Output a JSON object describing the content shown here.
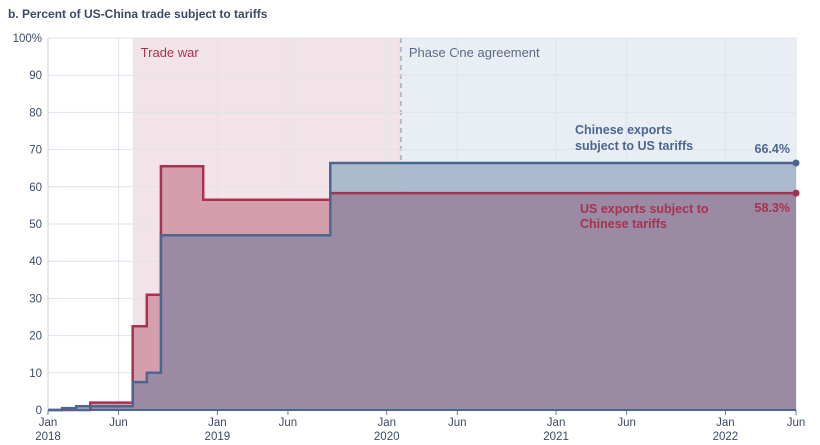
{
  "chart_data": {
    "type": "area",
    "title": "b. Percent of US-China trade subject to tariffs",
    "xlabel": "",
    "ylabel": "",
    "ylim": [
      0,
      100
    ],
    "y_ticks": [
      "0",
      "10",
      "20",
      "30",
      "40",
      "50",
      "60",
      "70",
      "80",
      "90",
      "100%"
    ],
    "y_tick_values": [
      0,
      10,
      20,
      30,
      40,
      50,
      60,
      70,
      80,
      90,
      100
    ],
    "x_range": [
      "2018-01",
      "2022-06"
    ],
    "x_ticks": [
      {
        "month": "Jan",
        "year": "2018",
        "date": "2018-01"
      },
      {
        "month": "Jun",
        "year": "",
        "date": "2018-06"
      },
      {
        "month": "Jan",
        "year": "2019",
        "date": "2019-01"
      },
      {
        "month": "Jun",
        "year": "",
        "date": "2019-06"
      },
      {
        "month": "Jan",
        "year": "2020",
        "date": "2020-01"
      },
      {
        "month": "Jun",
        "year": "",
        "date": "2020-06"
      },
      {
        "month": "Jan",
        "year": "2021",
        "date": "2021-01"
      },
      {
        "month": "Jun",
        "year": "",
        "date": "2021-06"
      },
      {
        "month": "Jan",
        "year": "2022",
        "date": "2022-01"
      },
      {
        "month": "Jun",
        "year": "",
        "date": "2022-06"
      }
    ],
    "grid": true,
    "regions": [
      {
        "label": "Trade war",
        "start": "2018-07",
        "end": "2020-02",
        "color": "#f2e3e8",
        "text_color": "#a8324e"
      },
      {
        "label": "Phase One agreement",
        "start": "2020-02",
        "end": "2022-06",
        "color": "#e9edf4",
        "text_color": "#5a6a86"
      }
    ],
    "series": [
      {
        "name": "US exports subject to Chinese tariffs",
        "value_label": "58.3%",
        "color": "#a8324e",
        "fill": "#d39aaa",
        "points": [
          [
            "2018-01",
            0
          ],
          [
            "2018-04",
            2
          ],
          [
            "2018-07",
            22.5
          ],
          [
            "2018-08",
            31
          ],
          [
            "2018-09",
            65.5
          ],
          [
            "2018-12",
            56.5
          ],
          [
            "2019-09",
            58.3
          ],
          [
            "2022-06",
            58.3
          ]
        ]
      },
      {
        "name": "Chinese exports subject to US tariffs",
        "value_label": "66.4%",
        "color": "#4a6791",
        "fill": "#a8b7cc",
        "points": [
          [
            "2018-01",
            0
          ],
          [
            "2018-02",
            0.5
          ],
          [
            "2018-03",
            1
          ],
          [
            "2018-07",
            7.5
          ],
          [
            "2018-08",
            10
          ],
          [
            "2018-09",
            47
          ],
          [
            "2019-09",
            66.4
          ],
          [
            "2022-06",
            66.4
          ]
        ]
      }
    ],
    "overlap_fill": "#9b8aa4"
  }
}
